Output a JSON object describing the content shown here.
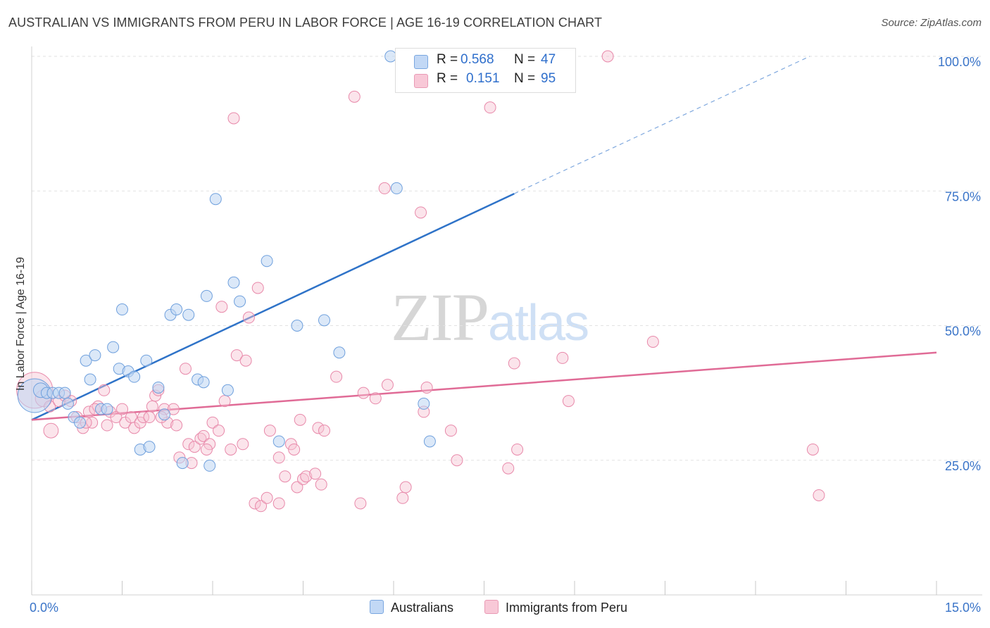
{
  "title": "AUSTRALIAN VS IMMIGRANTS FROM PERU IN LABOR FORCE | AGE 16-19 CORRELATION CHART",
  "source": "Source: ZipAtlas.com",
  "watermark": {
    "zip": "ZIP",
    "atlas": "atlas"
  },
  "legend": {
    "rows": [
      {
        "r_label": "R =",
        "r_value": "0.568",
        "n_label": "N =",
        "n_value": "47"
      },
      {
        "r_label": "R =",
        "r_value": "0.151",
        "n_label": "N =",
        "n_value": "95"
      }
    ]
  },
  "chart_data": {
    "type": "scatter",
    "xlabel": "",
    "ylabel": "In Labor Force | Age 16-19",
    "xlim": [
      0,
      15
    ],
    "ylim": [
      0,
      100
    ],
    "x_tick_labels": [
      "0.0%",
      "15.0%"
    ],
    "y_ticks": [
      25,
      50,
      75,
      100
    ],
    "y_tick_labels": [
      "25.0%",
      "50.0%",
      "75.0%",
      "100.0%"
    ],
    "grid": true,
    "legend_position": "top-center",
    "colors": {
      "Australians": "#6fa0dd",
      "Australians_fill": "#bdd5f3",
      "Australians_line": "#2f73c8",
      "Immigrants from Peru": "#e889aa",
      "Immigrants from Peru_fill": "#f6c3d3",
      "Immigrants from Peru_line": "#e06b96"
    },
    "series": [
      {
        "name": "Australians",
        "r": 0.568,
        "n": 47,
        "trend": {
          "x0": 0.0,
          "y0": 32.5,
          "x1": 8.0,
          "y1": 74.5,
          "dashed_to_x": 12.9,
          "dashed_to_y": 100.0
        },
        "points": [
          {
            "x": 0.05,
            "y": 37.0,
            "s": 3
          },
          {
            "x": 0.15,
            "y": 38.0,
            "s": 1.3
          },
          {
            "x": 0.25,
            "y": 37.5,
            "s": 1
          },
          {
            "x": 0.35,
            "y": 37.5,
            "s": 1
          },
          {
            "x": 0.45,
            "y": 37.5,
            "s": 1
          },
          {
            "x": 0.55,
            "y": 37.5,
            "s": 1
          },
          {
            "x": 0.6,
            "y": 35.5,
            "s": 1
          },
          {
            "x": 0.7,
            "y": 33.0,
            "s": 1
          },
          {
            "x": 0.8,
            "y": 32.0,
            "s": 1
          },
          {
            "x": 0.9,
            "y": 43.5,
            "s": 1
          },
          {
            "x": 0.97,
            "y": 40.0,
            "s": 1
          },
          {
            "x": 1.05,
            "y": 44.5,
            "s": 1
          },
          {
            "x": 1.15,
            "y": 34.5,
            "s": 1
          },
          {
            "x": 1.25,
            "y": 34.5,
            "s": 1
          },
          {
            "x": 1.35,
            "y": 46.0,
            "s": 1
          },
          {
            "x": 1.45,
            "y": 42.0,
            "s": 1
          },
          {
            "x": 1.5,
            "y": 53.0,
            "s": 1
          },
          {
            "x": 1.6,
            "y": 41.5,
            "s": 1
          },
          {
            "x": 1.7,
            "y": 40.5,
            "s": 1
          },
          {
            "x": 1.8,
            "y": 27.0,
            "s": 1
          },
          {
            "x": 1.9,
            "y": 43.5,
            "s": 1
          },
          {
            "x": 1.95,
            "y": 27.5,
            "s": 1
          },
          {
            "x": 2.1,
            "y": 38.5,
            "s": 1
          },
          {
            "x": 2.2,
            "y": 33.5,
            "s": 1
          },
          {
            "x": 2.3,
            "y": 52.0,
            "s": 1
          },
          {
            "x": 2.4,
            "y": 53.0,
            "s": 1
          },
          {
            "x": 2.5,
            "y": 24.5,
            "s": 1
          },
          {
            "x": 2.6,
            "y": 52.0,
            "s": 1
          },
          {
            "x": 2.75,
            "y": 40.0,
            "s": 1
          },
          {
            "x": 2.85,
            "y": 39.5,
            "s": 1
          },
          {
            "x": 2.9,
            "y": 55.5,
            "s": 1
          },
          {
            "x": 2.95,
            "y": 24.0,
            "s": 1
          },
          {
            "x": 3.05,
            "y": 73.5,
            "s": 1
          },
          {
            "x": 3.25,
            "y": 38.0,
            "s": 1
          },
          {
            "x": 3.35,
            "y": 58.0,
            "s": 1
          },
          {
            "x": 3.45,
            "y": 54.5,
            "s": 1
          },
          {
            "x": 3.9,
            "y": 62.0,
            "s": 1
          },
          {
            "x": 4.1,
            "y": 28.5,
            "s": 1
          },
          {
            "x": 4.4,
            "y": 50.0,
            "s": 1
          },
          {
            "x": 4.85,
            "y": 51.0,
            "s": 1
          },
          {
            "x": 5.1,
            "y": 45.0,
            "s": 1
          },
          {
            "x": 5.95,
            "y": 100.0,
            "s": 1
          },
          {
            "x": 6.2,
            "y": 100.0,
            "s": 1
          },
          {
            "x": 6.05,
            "y": 75.5,
            "s": 1
          },
          {
            "x": 6.5,
            "y": 35.5,
            "s": 1
          },
          {
            "x": 6.6,
            "y": 28.5,
            "s": 1
          },
          {
            "x": 7.6,
            "y": 100.0,
            "s": 1
          }
        ]
      },
      {
        "name": "Immigrants from Peru",
        "r": 0.151,
        "n": 95,
        "trend": {
          "x0": 0.0,
          "y0": 32.5,
          "x1": 15.0,
          "y1": 45.0
        },
        "points": [
          {
            "x": 0.05,
            "y": 38.0,
            "s": 3.2
          },
          {
            "x": 0.2,
            "y": 36.5,
            "s": 1.5
          },
          {
            "x": 0.3,
            "y": 35.0,
            "s": 1
          },
          {
            "x": 0.32,
            "y": 30.5,
            "s": 1.3
          },
          {
            "x": 0.45,
            "y": 36.0,
            "s": 1
          },
          {
            "x": 0.55,
            "y": 37.0,
            "s": 1
          },
          {
            "x": 0.65,
            "y": 36.0,
            "s": 1
          },
          {
            "x": 0.75,
            "y": 33.0,
            "s": 1
          },
          {
            "x": 0.85,
            "y": 31.0,
            "s": 1
          },
          {
            "x": 0.95,
            "y": 34.0,
            "s": 1
          },
          {
            "x": 1.0,
            "y": 32.0,
            "s": 1
          },
          {
            "x": 1.1,
            "y": 35.0,
            "s": 1
          },
          {
            "x": 1.2,
            "y": 38.0,
            "s": 1
          },
          {
            "x": 1.25,
            "y": 31.5,
            "s": 1
          },
          {
            "x": 1.3,
            "y": 34.0,
            "s": 1
          },
          {
            "x": 1.4,
            "y": 33.0,
            "s": 1
          },
          {
            "x": 1.5,
            "y": 34.5,
            "s": 1
          },
          {
            "x": 1.55,
            "y": 32.0,
            "s": 1
          },
          {
            "x": 1.65,
            "y": 33.0,
            "s": 1
          },
          {
            "x": 1.7,
            "y": 31.0,
            "s": 1
          },
          {
            "x": 1.8,
            "y": 32.0,
            "s": 1
          },
          {
            "x": 1.85,
            "y": 33.0,
            "s": 1
          },
          {
            "x": 1.95,
            "y": 33.0,
            "s": 1
          },
          {
            "x": 2.0,
            "y": 35.0,
            "s": 1
          },
          {
            "x": 2.05,
            "y": 37.0,
            "s": 1
          },
          {
            "x": 2.1,
            "y": 38.0,
            "s": 1
          },
          {
            "x": 2.2,
            "y": 34.5,
            "s": 1
          },
          {
            "x": 2.25,
            "y": 32.0,
            "s": 1
          },
          {
            "x": 2.35,
            "y": 34.5,
            "s": 1
          },
          {
            "x": 2.45,
            "y": 25.5,
            "s": 1
          },
          {
            "x": 2.55,
            "y": 42.0,
            "s": 1
          },
          {
            "x": 2.6,
            "y": 28.0,
            "s": 1
          },
          {
            "x": 2.65,
            "y": 24.5,
            "s": 1
          },
          {
            "x": 2.7,
            "y": 27.5,
            "s": 1
          },
          {
            "x": 2.8,
            "y": 29.0,
            "s": 1
          },
          {
            "x": 2.85,
            "y": 29.5,
            "s": 1
          },
          {
            "x": 2.95,
            "y": 28.0,
            "s": 1
          },
          {
            "x": 2.9,
            "y": 27.0,
            "s": 1
          },
          {
            "x": 3.0,
            "y": 32.0,
            "s": 1
          },
          {
            "x": 3.1,
            "y": 30.5,
            "s": 1
          },
          {
            "x": 3.15,
            "y": 53.5,
            "s": 1
          },
          {
            "x": 3.2,
            "y": 36.0,
            "s": 1
          },
          {
            "x": 3.3,
            "y": 27.0,
            "s": 1
          },
          {
            "x": 3.35,
            "y": 88.5,
            "s": 1
          },
          {
            "x": 3.4,
            "y": 44.5,
            "s": 1
          },
          {
            "x": 3.5,
            "y": 28.0,
            "s": 1
          },
          {
            "x": 3.55,
            "y": 43.5,
            "s": 1
          },
          {
            "x": 3.6,
            "y": 51.5,
            "s": 1
          },
          {
            "x": 3.7,
            "y": 17.0,
            "s": 1
          },
          {
            "x": 3.75,
            "y": 57.0,
            "s": 1
          },
          {
            "x": 3.8,
            "y": 16.5,
            "s": 1
          },
          {
            "x": 3.9,
            "y": 18.0,
            "s": 1
          },
          {
            "x": 3.95,
            "y": 30.5,
            "s": 1
          },
          {
            "x": 4.1,
            "y": 17.0,
            "s": 1
          },
          {
            "x": 4.1,
            "y": 25.5,
            "s": 1
          },
          {
            "x": 4.2,
            "y": 22.0,
            "s": 1
          },
          {
            "x": 4.3,
            "y": 28.0,
            "s": 1
          },
          {
            "x": 4.35,
            "y": 27.0,
            "s": 1
          },
          {
            "x": 4.4,
            "y": 20.0,
            "s": 1
          },
          {
            "x": 4.45,
            "y": 32.5,
            "s": 1
          },
          {
            "x": 4.5,
            "y": 21.5,
            "s": 1
          },
          {
            "x": 4.55,
            "y": 22.0,
            "s": 1
          },
          {
            "x": 4.7,
            "y": 22.5,
            "s": 1
          },
          {
            "x": 4.75,
            "y": 31.0,
            "s": 1
          },
          {
            "x": 4.8,
            "y": 20.5,
            "s": 1
          },
          {
            "x": 4.85,
            "y": 30.5,
            "s": 1
          },
          {
            "x": 5.05,
            "y": 40.5,
            "s": 1
          },
          {
            "x": 5.35,
            "y": 92.5,
            "s": 1
          },
          {
            "x": 5.45,
            "y": 17.0,
            "s": 1
          },
          {
            "x": 5.5,
            "y": 37.5,
            "s": 1
          },
          {
            "x": 5.7,
            "y": 36.5,
            "s": 1
          },
          {
            "x": 5.85,
            "y": 75.5,
            "s": 1
          },
          {
            "x": 5.9,
            "y": 39.0,
            "s": 1
          },
          {
            "x": 6.15,
            "y": 18.0,
            "s": 1
          },
          {
            "x": 6.2,
            "y": 20.0,
            "s": 1
          },
          {
            "x": 6.45,
            "y": 71.0,
            "s": 1
          },
          {
            "x": 6.5,
            "y": 34.0,
            "s": 1
          },
          {
            "x": 6.55,
            "y": 38.5,
            "s": 1
          },
          {
            "x": 6.95,
            "y": 30.5,
            "s": 1
          },
          {
            "x": 7.05,
            "y": 25.0,
            "s": 1
          },
          {
            "x": 7.3,
            "y": 100.0,
            "s": 1
          },
          {
            "x": 7.6,
            "y": 90.5,
            "s": 1
          },
          {
            "x": 7.9,
            "y": 23.5,
            "s": 1
          },
          {
            "x": 8.0,
            "y": 43.0,
            "s": 1
          },
          {
            "x": 8.05,
            "y": 27.0,
            "s": 1
          },
          {
            "x": 8.8,
            "y": 44.0,
            "s": 1
          },
          {
            "x": 8.9,
            "y": 36.0,
            "s": 1
          },
          {
            "x": 9.55,
            "y": 100.0,
            "s": 1
          },
          {
            "x": 10.3,
            "y": 47.0,
            "s": 1
          },
          {
            "x": 12.95,
            "y": 27.0,
            "s": 1
          },
          {
            "x": 13.05,
            "y": 18.5,
            "s": 1
          },
          {
            "x": 2.15,
            "y": 33.0,
            "s": 1
          },
          {
            "x": 1.05,
            "y": 34.5,
            "s": 1
          },
          {
            "x": 0.9,
            "y": 32.0,
            "s": 1
          },
          {
            "x": 2.4,
            "y": 31.5,
            "s": 1
          }
        ]
      }
    ]
  }
}
